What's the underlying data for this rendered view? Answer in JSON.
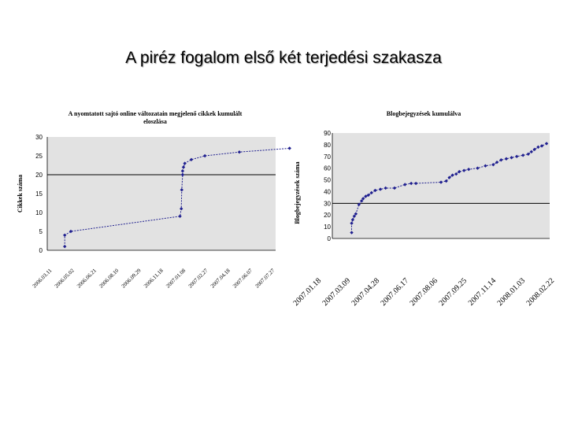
{
  "slide": {
    "title": "A piréz fogalom első két terjedési szakasza"
  },
  "colors": {
    "series": "#1f1f8f",
    "plot_bg": "#e2e2e2",
    "threshold_line": "#000000"
  },
  "chart_data": [
    {
      "type": "line",
      "title_lines": [
        "A nyomtatott sajtó online változatain megjelenő cikkek kumulált",
        "eloszlása"
      ],
      "xlabel": "",
      "ylabel": "Cikkek száma",
      "x_ticks": [
        "2006.03.11",
        "2006.05.02",
        "2006.06.21",
        "2006.08.10",
        "2006.09.29",
        "2006.11.18",
        "2007.01.08",
        "2007.02.27",
        "2007.04.18",
        "2007.06.07",
        "2007.07.27"
      ],
      "ylim": [
        0,
        30
      ],
      "y_ticks": [
        0,
        5,
        10,
        15,
        20,
        25,
        30
      ],
      "threshold": 20,
      "grid": false,
      "series": [
        {
          "x": [
            "2006.04.10",
            "2006.04.10",
            "2006.04.24",
            "2006.12.30",
            "2007.01.02",
            "2007.01.03",
            "2007.01.05",
            "2007.01.05",
            "2007.01.07",
            "2007.01.10",
            "2007.01.25",
            "2007.02.25",
            "2007.05.15",
            "2007.09.07"
          ],
          "values": [
            1,
            4,
            5,
            9,
            11,
            16,
            20,
            21,
            22,
            23,
            24,
            25,
            26,
            27
          ]
        }
      ]
    },
    {
      "type": "line",
      "title_lines": [
        "Blogbejegyzések kumulálva"
      ],
      "xlabel": "",
      "ylabel": "Blogbejegyzések száma",
      "x_ticks": [
        "2007.01.18",
        "2007.03.09",
        "2007.04.28",
        "2007.06.17",
        "2007.08.06",
        "2007.09.25",
        "2007.11.14",
        "2008.01.03",
        "2008.02.22"
      ],
      "ylim": [
        0,
        90
      ],
      "y_ticks": [
        0,
        10,
        20,
        30,
        40,
        50,
        60,
        70,
        80,
        90
      ],
      "threshold": 30,
      "grid": false,
      "series": [
        {
          "x": [
            "2007.02.16",
            "2007.02.16",
            "2007.02.18",
            "2007.02.21",
            "2007.02.24",
            "2007.03.02",
            "2007.03.07",
            "2007.03.10",
            "2007.03.15",
            "2007.03.20",
            "2007.03.26",
            "2007.04.02",
            "2007.04.12",
            "2007.04.22",
            "2007.05.09",
            "2007.05.29",
            "2007.06.10",
            "2007.06.19",
            "2007.08.06",
            "2007.08.16",
            "2007.08.22",
            "2007.08.28",
            "2007.09.04",
            "2007.09.10",
            "2007.09.19",
            "2007.09.28",
            "2007.10.15",
            "2007.10.30",
            "2007.11.14",
            "2007.11.21",
            "2007.11.29",
            "2007.12.09",
            "2007.12.19",
            "2007.12.29",
            "2008.01.10",
            "2008.01.20",
            "2008.01.26",
            "2008.02.01",
            "2008.02.08",
            "2008.02.15",
            "2008.02.24"
          ],
          "values": [
            5,
            13,
            16,
            19,
            21,
            29,
            32,
            34,
            36,
            37,
            39,
            41,
            42,
            43,
            43,
            46,
            47,
            47,
            48,
            49,
            52,
            54,
            55,
            57,
            58,
            59,
            60,
            62,
            63,
            65,
            67,
            68,
            69,
            70,
            71,
            72,
            74,
            76,
            78,
            79,
            81
          ]
        }
      ]
    }
  ]
}
